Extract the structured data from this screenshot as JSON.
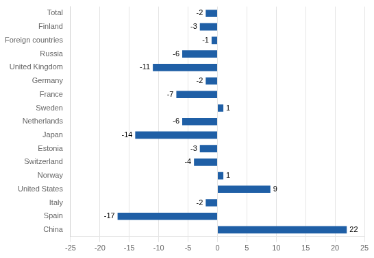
{
  "chart_data": {
    "type": "bar",
    "orientation": "horizontal",
    "categories": [
      "China",
      "Spain",
      "Italy",
      "United States",
      "Norway",
      "Switzerland",
      "Estonia",
      "Japan",
      "Netherlands",
      "Sweden",
      "France",
      "Germany",
      "United Kingdom",
      "Russia",
      "Foreign countries",
      "Finland",
      "Total"
    ],
    "values": [
      22,
      -17,
      -2,
      9,
      1,
      -4,
      -3,
      -14,
      -6,
      1,
      -7,
      -2,
      -11,
      -6,
      -1,
      -3,
      -2
    ],
    "color": "#1F5FA6",
    "xlim": [
      -25,
      25
    ],
    "xticks": [
      -25,
      -20,
      -15,
      -10,
      -5,
      0,
      5,
      10,
      15,
      20,
      25
    ],
    "grid": true,
    "data_labels": true
  }
}
